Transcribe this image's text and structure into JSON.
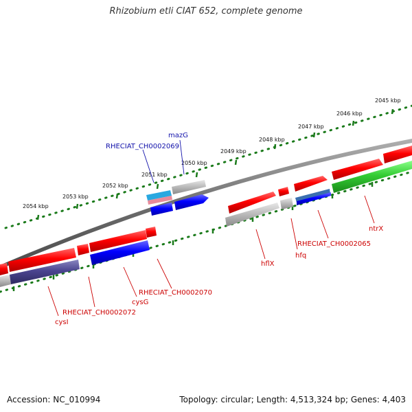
{
  "title": "Rhizobium etli CIAT 652, complete genome",
  "footer": {
    "accession": "Accession: NC_010994",
    "summary": "Topology: circular; Length: 4,513,324 bp; Genes: 4,403"
  },
  "ruler_labels": [
    "2045 kbp",
    "2046 kbp",
    "2047 kbp",
    "2048 kbp",
    "2049 kbp",
    "2050 kbp",
    "2051 kbp",
    "2052 kbp",
    "2053 kbp",
    "2054 kbp"
  ],
  "gene_labels": {
    "mazG": "mazG",
    "RHECIAT_CH0002069": "RHECIAT_CH0002069",
    "ntrX": "ntrX",
    "RHECIAT_CH0002065": "RHECIAT_CH0002065",
    "hfq": "hfq",
    "hflX": "hflX",
    "RHECIAT_CH0002070": "RHECIAT_CH0002070",
    "cysG": "cysG",
    "RHECIAT_CH0002072": "RHECIAT_CH0002072",
    "cysI": "cysI"
  },
  "colors": {
    "backbone": "#777777",
    "ruler": "#1a7a1a",
    "cds_forward": "#ee0000",
    "cds_reverse": "#0000ee",
    "pseudo": "#aaaaaa",
    "regulator": "#22bb22",
    "label_red": "#cc0000",
    "label_blue": "#1010aa"
  }
}
